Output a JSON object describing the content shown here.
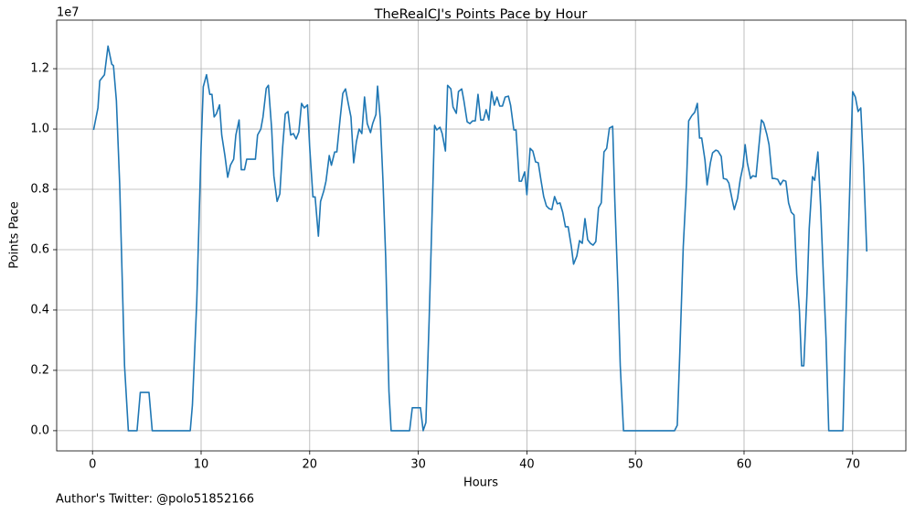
{
  "chart_data": {
    "type": "line",
    "title": "TheRealCJ's Points Pace by Hour",
    "x_label": "Hours",
    "y_label": "Points Pace",
    "y_offset_label": "1e7",
    "footnote": "Author's Twitter: @polo51852166",
    "color": "#1f77b4",
    "grid": true,
    "xlim": [
      -3.3,
      74.9
    ],
    "ylim": [
      -0.067,
      1.361
    ],
    "xticks": [
      0,
      10,
      20,
      30,
      40,
      50,
      60,
      70
    ],
    "yticks": [
      {
        "value": 0,
        "label": "0.0"
      },
      {
        "value": 0.2,
        "label": "0.2"
      },
      {
        "value": 0.4,
        "label": "0.4"
      },
      {
        "value": 0.6,
        "label": "0.6"
      },
      {
        "value": 0.8,
        "label": "0.8"
      },
      {
        "value": 1.0,
        "label": "1.0"
      },
      {
        "value": 1.2,
        "label": "1.2"
      }
    ],
    "x": [
      0.1,
      0.5,
      0.67,
      1.1,
      1.43,
      1.77,
      1.93,
      2.2,
      2.5,
      2.95,
      3.3,
      4.1,
      4.4,
      5.2,
      5.5,
      9.0,
      9.2,
      9.6,
      10.0,
      10.2,
      10.5,
      10.8,
      11.0,
      11.2,
      11.4,
      11.7,
      11.9,
      12.2,
      12.45,
      12.7,
      13.0,
      13.2,
      13.5,
      13.7,
      14.0,
      14.2,
      14.7,
      15.0,
      15.2,
      15.5,
      15.7,
      16.0,
      16.2,
      16.5,
      16.7,
      17.0,
      17.25,
      17.5,
      17.75,
      18.0,
      18.25,
      18.5,
      18.75,
      19.0,
      19.25,
      19.5,
      19.8,
      20.0,
      20.3,
      20.5,
      20.8,
      21.0,
      21.3,
      21.5,
      21.8,
      22.0,
      22.3,
      22.5,
      22.8,
      23.05,
      23.3,
      23.55,
      23.8,
      24.05,
      24.3,
      24.55,
      24.8,
      25.05,
      25.3,
      25.6,
      25.8,
      26.1,
      26.25,
      26.5,
      26.75,
      27.0,
      27.3,
      27.5,
      29.2,
      29.45,
      30.2,
      30.45,
      30.7,
      31.0,
      31.5,
      31.7,
      32.0,
      32.2,
      32.5,
      32.7,
      33.0,
      33.2,
      33.5,
      33.7,
      34.0,
      34.2,
      34.5,
      34.75,
      35.0,
      35.25,
      35.5,
      35.75,
      36.0,
      36.25,
      36.5,
      36.75,
      37.0,
      37.25,
      37.5,
      37.75,
      38.0,
      38.3,
      38.5,
      38.8,
      39.0,
      39.3,
      39.5,
      39.8,
      40.0,
      40.3,
      40.55,
      40.8,
      41.05,
      41.3,
      41.55,
      41.8,
      42.05,
      42.3,
      42.55,
      42.8,
      43.05,
      43.3,
      43.55,
      43.8,
      44.1,
      44.3,
      44.6,
      44.85,
      45.1,
      45.35,
      45.6,
      45.85,
      46.1,
      46.35,
      46.6,
      46.85,
      47.1,
      47.35,
      47.6,
      47.9,
      48.1,
      48.4,
      48.6,
      48.9,
      53.6,
      53.85,
      54.1,
      54.4,
      54.7,
      54.9,
      55.2,
      55.45,
      55.7,
      55.9,
      56.1,
      56.4,
      56.6,
      56.9,
      57.1,
      57.4,
      57.6,
      57.9,
      58.1,
      58.4,
      58.6,
      58.9,
      59.1,
      59.4,
      59.65,
      59.9,
      60.1,
      60.3,
      60.6,
      60.8,
      61.1,
      61.3,
      61.6,
      61.8,
      62.1,
      62.3,
      62.6,
      62.8,
      63.1,
      63.35,
      63.6,
      63.85,
      64.1,
      64.35,
      64.6,
      64.85,
      65.1,
      65.3,
      65.5,
      65.8,
      66.0,
      66.3,
      66.5,
      66.8,
      67.05,
      67.3,
      67.55,
      67.8,
      69.1,
      69.3,
      69.65,
      70.0,
      70.25,
      70.5,
      70.75,
      71.0,
      71.3
    ],
    "values": [
      0.997,
      1.07,
      1.16,
      1.18,
      1.275,
      1.215,
      1.21,
      1.094,
      0.82,
      0.215,
      0,
      0,
      0.127,
      0.127,
      0,
      0,
      0.085,
      0.427,
      0.94,
      1.14,
      1.18,
      1.115,
      1.115,
      1.04,
      1.05,
      1.08,
      0.98,
      0.91,
      0.84,
      0.88,
      0.9,
      0.98,
      1.03,
      0.865,
      0.865,
      0.9,
      0.9,
      0.9,
      0.98,
      1.0,
      1.04,
      1.135,
      1.145,
      1.0,
      0.845,
      0.76,
      0.785,
      0.935,
      1.05,
      1.058,
      0.98,
      0.985,
      0.967,
      0.99,
      1.085,
      1.07,
      1.08,
      0.94,
      0.775,
      0.775,
      0.645,
      0.76,
      0.795,
      0.827,
      0.912,
      0.88,
      0.924,
      0.924,
      1.033,
      1.118,
      1.133,
      1.085,
      1.04,
      0.888,
      0.958,
      1.0,
      0.985,
      1.106,
      1.018,
      0.988,
      1.018,
      1.048,
      1.142,
      1.033,
      0.827,
      0.573,
      0.13,
      0,
      0,
      0.076,
      0.076,
      0,
      0.027,
      0.367,
      1.012,
      0.997,
      1.006,
      0.985,
      0.927,
      1.145,
      1.133,
      1.073,
      1.052,
      1.124,
      1.133,
      1.094,
      1.024,
      1.018,
      1.027,
      1.027,
      1.115,
      1.03,
      1.03,
      1.064,
      1.03,
      1.124,
      1.079,
      1.106,
      1.076,
      1.076,
      1.106,
      1.109,
      1.079,
      0.997,
      0.997,
      0.827,
      0.827,
      0.858,
      0.782,
      0.936,
      0.927,
      0.891,
      0.888,
      0.83,
      0.776,
      0.745,
      0.736,
      0.733,
      0.776,
      0.752,
      0.755,
      0.724,
      0.676,
      0.676,
      0.609,
      0.552,
      0.579,
      0.63,
      0.621,
      0.703,
      0.633,
      0.621,
      0.615,
      0.627,
      0.739,
      0.755,
      0.924,
      0.936,
      1.003,
      1.009,
      0.761,
      0.458,
      0.215,
      0,
      0,
      0.018,
      0.276,
      0.609,
      0.821,
      1.027,
      1.045,
      1.055,
      1.085,
      0.97,
      0.97,
      0.897,
      0.815,
      0.888,
      0.921,
      0.93,
      0.927,
      0.909,
      0.836,
      0.833,
      0.821,
      0.767,
      0.733,
      0.77,
      0.833,
      0.876,
      0.948,
      0.888,
      0.836,
      0.845,
      0.842,
      0.918,
      1.03,
      1.021,
      0.982,
      0.948,
      0.836,
      0.836,
      0.833,
      0.815,
      0.83,
      0.827,
      0.755,
      0.724,
      0.715,
      0.518,
      0.397,
      0.215,
      0.215,
      0.458,
      0.67,
      0.842,
      0.83,
      0.924,
      0.745,
      0.518,
      0.306,
      0,
      0,
      0.276,
      0.7,
      1.124,
      1.106,
      1.058,
      1.07,
      0.882,
      0.594
    ]
  }
}
